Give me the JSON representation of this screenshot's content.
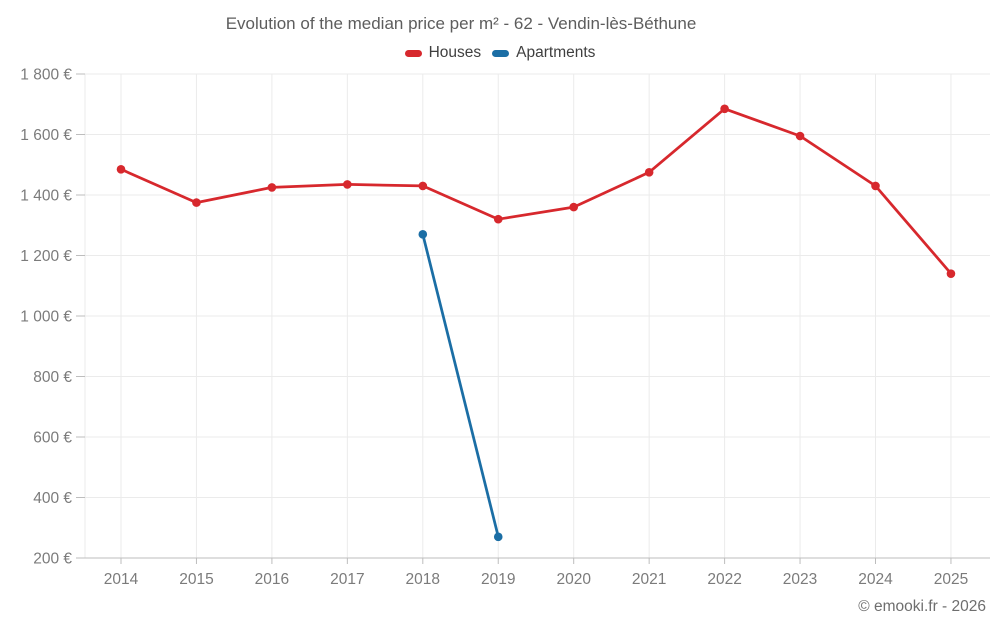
{
  "footer": {
    "copyright": "© emooki.fr - 2026"
  },
  "chart_data": {
    "type": "line",
    "title": "Evolution of the median price per m² - 62 - Vendin-lès-Béthune",
    "x": [
      2014,
      2015,
      2016,
      2017,
      2018,
      2019,
      2020,
      2021,
      2022,
      2023,
      2024,
      2025
    ],
    "series": [
      {
        "name": "Houses",
        "color": "#d7282d",
        "values": [
          1485,
          1375,
          1425,
          1435,
          1430,
          1320,
          1360,
          1475,
          1685,
          1595,
          1430,
          1140
        ]
      },
      {
        "name": "Apartments",
        "color": "#1b6ea5",
        "values": [
          null,
          null,
          null,
          null,
          1270,
          270,
          null,
          null,
          null,
          null,
          null,
          null
        ]
      }
    ],
    "ylim": [
      200,
      1800
    ],
    "ytick_step": 200,
    "ytick_labels": [
      "200 €",
      "400 €",
      "600 €",
      "800 €",
      "1 000 €",
      "1 200 €",
      "1 400 €",
      "1 600 €",
      "1 800 €"
    ],
    "currency": "€",
    "grid": true,
    "legend_position": "top"
  }
}
